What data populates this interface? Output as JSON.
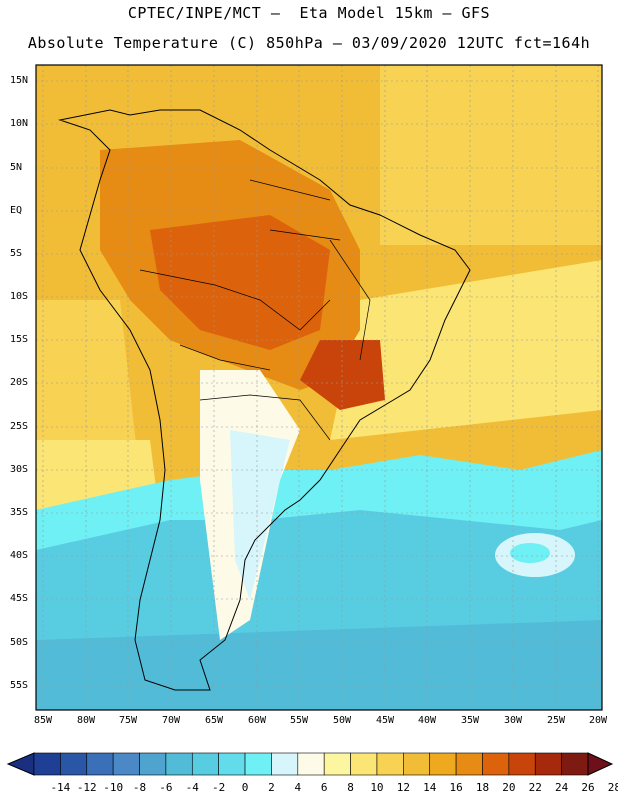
{
  "header": {
    "line1": "CPTEC/INPE/MCT —  Eta Model 15km — GFS",
    "line2": "Absolute Temperature (C) 850hPa — 03/09/2020 12UTC fct=164h"
  },
  "map": {
    "lat_labels": [
      "15N",
      "10N",
      "5N",
      "EQ",
      "5S",
      "10S",
      "15S",
      "20S",
      "25S",
      "30S",
      "35S",
      "40S",
      "45S",
      "50S",
      "55S"
    ],
    "lon_labels": [
      "85W",
      "80W",
      "75W",
      "70W",
      "65W",
      "60W",
      "55W",
      "50W",
      "45W",
      "40W",
      "35W",
      "30W",
      "25W",
      "20W"
    ]
  },
  "colorbar": {
    "labels": [
      "-14",
      "-12",
      "-10",
      "-8",
      "-6",
      "-4",
      "-2",
      "0",
      "2",
      "4",
      "6",
      "8",
      "10",
      "12",
      "14",
      "16",
      "18",
      "20",
      "22",
      "24",
      "26",
      "28"
    ],
    "colors": [
      "#1f3f95",
      "#2a56a6",
      "#3a70b8",
      "#4a88c6",
      "#4ea4cf",
      "#52bcd8",
      "#58cde2",
      "#62dcea",
      "#6ff0f4",
      "#d6f6fb",
      "#fdfbe8",
      "#fcf6a0",
      "#fbe574",
      "#f8d253",
      "#f2bd36",
      "#eea91e",
      "#e68b14",
      "#dc630c",
      "#c9440a",
      "#a6290c",
      "#7d1a12"
    ]
  }
}
